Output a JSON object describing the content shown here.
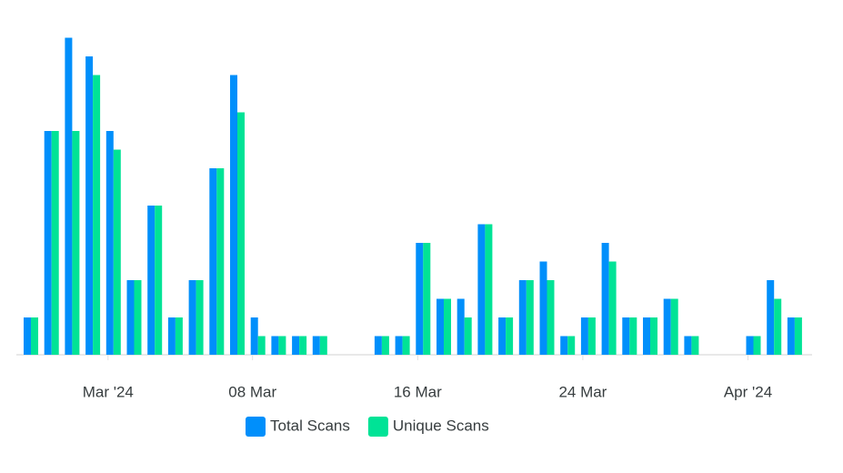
{
  "chart_data": {
    "type": "bar",
    "x": [
      "2024-02-26",
      "2024-02-27",
      "2024-02-28",
      "2024-02-29",
      "2024-03-01",
      "2024-03-02",
      "2024-03-03",
      "2024-03-04",
      "2024-03-05",
      "2024-03-06",
      "2024-03-07",
      "2024-03-08",
      "2024-03-09",
      "2024-03-10",
      "2024-03-11",
      "2024-03-12",
      "2024-03-13",
      "2024-03-14",
      "2024-03-15",
      "2024-03-16",
      "2024-03-17",
      "2024-03-18",
      "2024-03-19",
      "2024-03-20",
      "2024-03-21",
      "2024-03-22",
      "2024-03-23",
      "2024-03-24",
      "2024-03-25",
      "2024-03-26",
      "2024-03-27",
      "2024-03-28",
      "2024-03-29",
      "2024-03-30",
      "2024-03-31",
      "2024-04-01",
      "2024-04-02",
      "2024-04-03"
    ],
    "series": [
      {
        "name": "Total Scans",
        "color": "#008ffb",
        "values": [
          2,
          12,
          17,
          16,
          12,
          4,
          8,
          2,
          4,
          10,
          15,
          2,
          1,
          1,
          1,
          0,
          0,
          1,
          1,
          6,
          3,
          3,
          7,
          2,
          4,
          5,
          1,
          2,
          6,
          2,
          2,
          3,
          1,
          0,
          0,
          1,
          4,
          2
        ]
      },
      {
        "name": "Unique Scans",
        "color": "#00e396",
        "values": [
          2,
          12,
          12,
          15,
          11,
          4,
          8,
          2,
          4,
          10,
          13,
          1,
          1,
          1,
          1,
          0,
          0,
          1,
          1,
          6,
          3,
          2,
          7,
          2,
          4,
          4,
          1,
          2,
          5,
          2,
          2,
          3,
          1,
          0,
          0,
          1,
          3,
          2
        ]
      }
    ],
    "ylim": [
      0,
      18
    ],
    "xticks": [
      {
        "value": "2024-03-01",
        "label": "Mar '24"
      },
      {
        "value": "2024-03-08",
        "label": "08 Mar"
      },
      {
        "value": "2024-03-16",
        "label": "16 Mar"
      },
      {
        "value": "2024-03-24",
        "label": "24 Mar"
      },
      {
        "value": "2024-04-01",
        "label": "Apr '24"
      }
    ],
    "legend": "bottom"
  }
}
